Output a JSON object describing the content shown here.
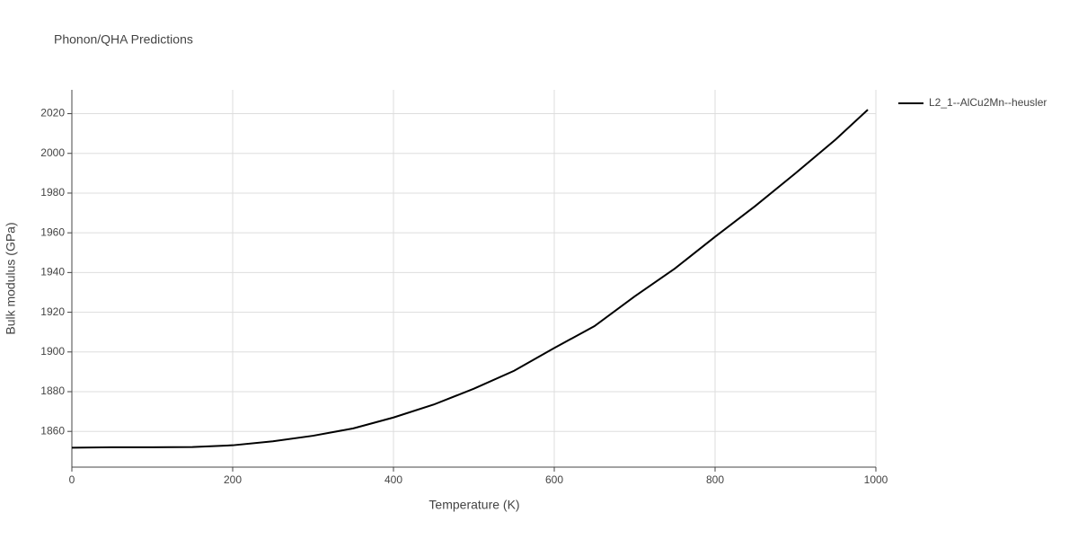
{
  "chart_data": {
    "type": "line",
    "title": "Phonon/QHA Predictions",
    "x_label": "Temperature (K)",
    "y_label": "Bulk modulus (GPa)",
    "x": [
      0,
      50,
      100,
      150,
      200,
      250,
      300,
      350,
      400,
      450,
      500,
      550,
      600,
      650,
      700,
      750,
      800,
      850,
      900,
      950,
      990
    ],
    "series": [
      {
        "name": "L2_1--AlCu2Mn--heusler",
        "color": "#000000",
        "values": [
          1851.8,
          1852,
          1852,
          1852.1,
          1853,
          1855,
          1857.8,
          1861.5,
          1867,
          1873.5,
          1881.5,
          1890.5,
          1902,
          1913,
          1928,
          1942,
          1958,
          1973.5,
          1990,
          2007,
          2022
        ]
      }
    ],
    "xlim": [
      0,
      1000
    ],
    "xticks": [
      0,
      200,
      400,
      600,
      800,
      1000
    ],
    "ylim": [
      1842,
      2032
    ],
    "yticks": [
      1860,
      1880,
      1900,
      1920,
      1940,
      1960,
      1980,
      2000,
      2020
    ],
    "grid": true,
    "legend": "right"
  }
}
